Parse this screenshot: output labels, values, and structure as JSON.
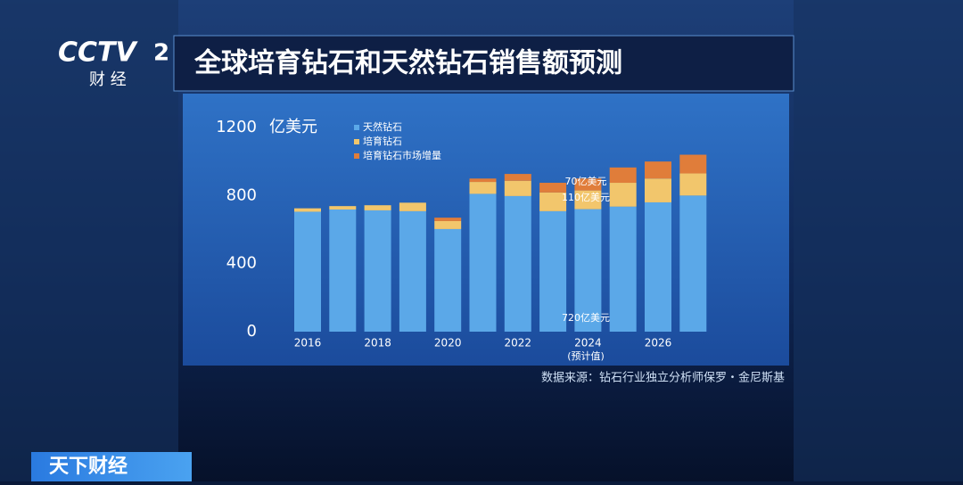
{
  "logo": {
    "brand": "CCTV",
    "number": "2",
    "name": "财 经"
  },
  "banner": "天下财经",
  "source": "数据来源：钻石行业独立分析师保罗・金尼斯基",
  "chart_data": {
    "type": "stacked_bar",
    "title": "全球培育钻石和天然钻石销售额预测",
    "y_label": "亿美元",
    "categories": [
      "2016",
      null,
      "2018",
      null,
      "2020",
      null,
      "2022",
      null,
      "2024",
      null,
      "2026",
      null
    ],
    "x_note": "(预计值)",
    "series": [
      {
        "name": "天然钻石",
        "color": "#5ba8e8",
        "values": [
          705,
          718,
          713,
          708,
          603,
          810,
          797,
          708,
          720,
          735,
          760,
          800
        ]
      },
      {
        "name": "培育钻石",
        "color": "#f2c66c",
        "values": [
          20,
          20,
          30,
          50,
          47,
          70,
          90,
          110,
          110,
          140,
          140,
          130
        ]
      },
      {
        "name": "培育钻石市场增量",
        "color": "#e07d3a",
        "values": [
          0,
          0,
          0,
          0,
          20,
          20,
          40,
          57,
          70,
          90,
          100,
          110
        ]
      }
    ],
    "annotations": [
      "70亿美元",
      "110亿美元",
      "720亿美元"
    ],
    "ylim": [
      0,
      1200
    ],
    "yticks": [
      0,
      400,
      800,
      1200
    ],
    "grid": false
  }
}
